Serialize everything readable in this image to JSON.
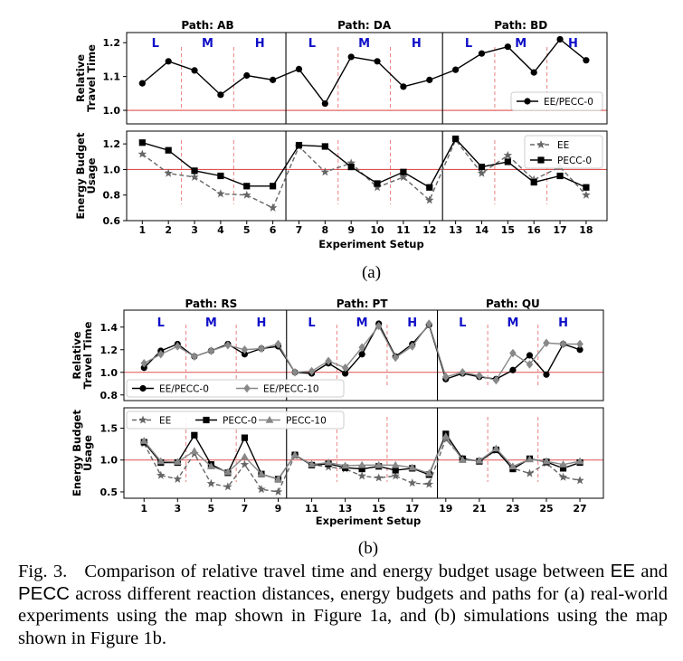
{
  "caption": {
    "label": "Fig. 3.",
    "p1": "Comparison of relative travel time and energy budget usage between ",
    "ee": "EE",
    "and": " and ",
    "pecc": "PECC",
    "p2": " across different reaction distances, energy budgets and paths for (a) real-world experiments using the map shown in Figure 1a, and (b) simulations using the map shown in Figure 1b."
  },
  "chart_data": [
    {
      "id": "a",
      "subfigure_label": "(a)",
      "type": "line",
      "xlabel": "Experiment Setup",
      "x": [
        1,
        2,
        3,
        4,
        5,
        6,
        7,
        8,
        9,
        10,
        11,
        12,
        13,
        14,
        15,
        16,
        17,
        18
      ],
      "xticks": [
        1,
        2,
        3,
        4,
        5,
        6,
        7,
        8,
        9,
        10,
        11,
        12,
        13,
        14,
        15,
        16,
        17,
        18
      ],
      "xlim": [
        0.4,
        18.8
      ],
      "paths": [
        "Path: AB",
        "Path: DA",
        "Path: BD"
      ],
      "distance_labels": [
        "L",
        "M",
        "H"
      ],
      "panels": [
        {
          "ylabel": [
            "Relative",
            "Travel Time"
          ],
          "ylim": [
            0.96,
            1.23
          ],
          "yticks": [
            1.0,
            1.1,
            1.2
          ],
          "yticklabels": [
            "1.0",
            "1.1",
            "1.2"
          ],
          "reference_line": 1.0,
          "legend": "lower right",
          "series": [
            {
              "name": "EE/PECC-0",
              "marker": "circle",
              "style": "solid",
              "color": "#000000",
              "values": [
                1.08,
                1.145,
                1.118,
                1.046,
                1.103,
                1.09,
                1.122,
                1.02,
                1.158,
                1.145,
                1.07,
                1.09,
                1.12,
                1.168,
                1.188,
                1.112,
                1.21,
                1.148
              ]
            }
          ]
        },
        {
          "ylabel": [
            "Energy Budget",
            "Usage"
          ],
          "ylim": [
            0.6,
            1.3
          ],
          "yticks": [
            0.6,
            0.8,
            1.0,
            1.2
          ],
          "yticklabels": [
            "0.6",
            "0.8",
            "1.0",
            "1.2"
          ],
          "reference_line": 1.0,
          "legend": "upper right",
          "series": [
            {
              "name": "EE",
              "marker": "star",
              "style": "dashed",
              "color": "#666666",
              "values": [
                1.12,
                0.97,
                0.94,
                0.81,
                0.8,
                0.7,
                1.18,
                0.98,
                1.05,
                0.86,
                0.94,
                0.76,
                1.23,
                0.97,
                1.11,
                0.92,
                1.02,
                0.8
              ]
            },
            {
              "name": "PECC-0",
              "marker": "square",
              "style": "solid",
              "color": "#000000",
              "values": [
                1.21,
                1.15,
                0.99,
                0.95,
                0.87,
                0.87,
                1.19,
                1.18,
                1.02,
                0.89,
                0.98,
                0.86,
                1.24,
                1.02,
                1.06,
                0.9,
                0.95,
                0.86
              ]
            }
          ]
        }
      ]
    },
    {
      "id": "b",
      "subfigure_label": "(b)",
      "type": "line",
      "xlabel": "Experiment Setup",
      "x": [
        1,
        2,
        3,
        4,
        5,
        6,
        7,
        8,
        9,
        10,
        11,
        12,
        13,
        14,
        15,
        16,
        17,
        18,
        19,
        20,
        21,
        22,
        23,
        24,
        25,
        26,
        27
      ],
      "xticks": [
        1,
        3,
        5,
        7,
        9,
        11,
        13,
        15,
        17,
        19,
        21,
        23,
        25,
        27
      ],
      "xlim": [
        -0.2,
        28.4
      ],
      "paths": [
        "Path: RS",
        "Path: PT",
        "Path: QU"
      ],
      "distance_labels": [
        "L",
        "M",
        "H"
      ],
      "panels": [
        {
          "ylabel": [
            "Relative",
            "Travel Time"
          ],
          "ylim": [
            0.75,
            1.55
          ],
          "yticks": [
            0.8,
            1.0,
            1.2,
            1.4
          ],
          "yticklabels": [
            "0.8",
            "1.0",
            "1.2",
            "1.4"
          ],
          "reference_line": 1.0,
          "legend": "lower left",
          "series": [
            {
              "name": "EE/PECC-0",
              "marker": "circle",
              "style": "solid",
              "color": "#000000",
              "values": [
                1.04,
                1.19,
                1.25,
                1.14,
                1.19,
                1.25,
                1.16,
                1.21,
                1.23,
                1.0,
                0.99,
                1.08,
                0.99,
                1.16,
                1.43,
                1.14,
                1.25,
                1.42,
                0.94,
                0.99,
                0.96,
                0.94,
                1.02,
                1.15,
                0.98,
                1.25,
                1.2
              ]
            },
            {
              "name": "EE/PECC-10",
              "marker": "diamond",
              "style": "solid",
              "color": "#888888",
              "values": [
                1.08,
                1.16,
                1.23,
                1.14,
                1.19,
                1.24,
                1.2,
                1.21,
                1.25,
                1.0,
                1.01,
                1.1,
                1.04,
                1.22,
                1.41,
                1.13,
                1.23,
                1.43,
                0.96,
                1.0,
                0.97,
                0.93,
                1.17,
                1.07,
                1.26,
                1.25,
                1.25
              ]
            }
          ]
        },
        {
          "ylabel": [
            "Energy Budget",
            "Usage"
          ],
          "ylim": [
            0.4,
            1.82
          ],
          "yticks": [
            0.5,
            1.0,
            1.5
          ],
          "yticklabels": [
            "0.5",
            "1.0",
            "1.5"
          ],
          "reference_line": 1.0,
          "legend": "top",
          "series": [
            {
              "name": "EE",
              "marker": "star",
              "style": "dashed",
              "color": "#666666",
              "values": [
                1.26,
                0.76,
                0.7,
                1.1,
                0.63,
                0.58,
                0.93,
                0.54,
                0.5,
                1.07,
                0.93,
                0.89,
                0.86,
                0.75,
                0.72,
                0.75,
                0.64,
                0.62,
                1.33,
                1.02,
                0.98,
                1.15,
                0.87,
                0.79,
                0.95,
                0.73,
                0.68
              ]
            },
            {
              "name": "PECC-0",
              "marker": "square",
              "style": "solid",
              "color": "#000000",
              "values": [
                1.28,
                0.96,
                0.96,
                1.39,
                0.93,
                0.8,
                1.35,
                0.78,
                0.7,
                1.08,
                0.92,
                0.94,
                0.88,
                0.86,
                0.9,
                0.84,
                0.87,
                0.77,
                1.41,
                1.02,
                0.98,
                1.16,
                0.86,
                1.02,
                0.97,
                0.87,
                0.96
              ]
            },
            {
              "name": "PECC-10",
              "marker": "triangle",
              "style": "solid",
              "color": "#888888",
              "values": [
                1.3,
                0.98,
                0.97,
                1.14,
                0.9,
                0.81,
                1.05,
                0.78,
                0.7,
                1.08,
                0.93,
                0.96,
                0.91,
                0.92,
                0.92,
                0.92,
                0.88,
                0.79,
                1.37,
                1.0,
                0.99,
                1.18,
                0.9,
                1.01,
                0.98,
                0.93,
                0.98
              ]
            }
          ]
        }
      ]
    }
  ]
}
